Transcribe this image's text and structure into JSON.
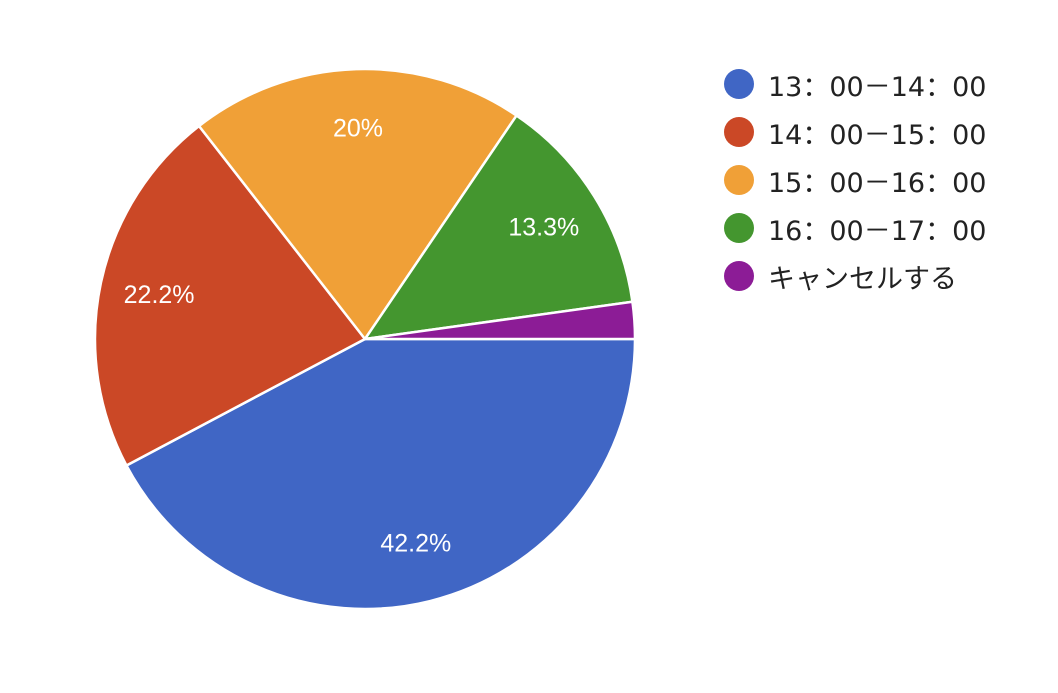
{
  "chart_data": {
    "type": "pie",
    "categories": [
      "13：00－14：00",
      "14：00－15：00",
      "15：00－16：00",
      "16：00－17：00",
      "キャンセルする"
    ],
    "values": [
      42.2,
      22.2,
      20,
      13.3,
      2.2
    ],
    "data_labels": [
      "42.2%",
      "22.2%",
      "20%",
      "13.3%",
      ""
    ],
    "colors": [
      "#4066c5",
      "#cb4826",
      "#f0a037",
      "#44962f",
      "#8c1c96"
    ],
    "title": "",
    "legend_position": "right"
  }
}
